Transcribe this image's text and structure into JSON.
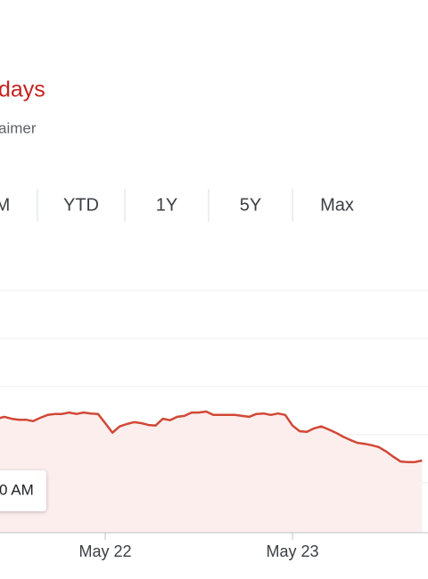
{
  "header": {
    "title": "days",
    "disclaimer": "aimer"
  },
  "tabs": [
    "M",
    "YTD",
    "1Y",
    "5Y",
    "Max"
  ],
  "tooltip": "0 AM",
  "chart_data": {
    "type": "line",
    "color": "#d14836",
    "fill": "#fdeeee",
    "grid": true,
    "ylim": [
      -1.04,
      4
    ],
    "grid_values": [
      0,
      1,
      2,
      3,
      4
    ],
    "categories": [
      null,
      null,
      null,
      null,
      null,
      null,
      null,
      null,
      null,
      null,
      null,
      null,
      null,
      null,
      null,
      "May 22",
      null,
      null,
      null,
      null,
      null,
      null,
      null,
      null,
      null,
      null,
      null,
      null,
      null,
      null,
      null,
      null,
      null,
      null,
      null,
      null,
      null,
      null,
      null,
      null,
      null,
      "May 23",
      null,
      null,
      null,
      null,
      null,
      null,
      null,
      null,
      null,
      null,
      null,
      null,
      null,
      null,
      null,
      null,
      null,
      null
    ],
    "values": [
      1.33,
      1.37,
      1.33,
      1.31,
      1.31,
      1.28,
      1.35,
      1.41,
      1.43,
      1.43,
      1.46,
      1.43,
      1.46,
      1.44,
      1.43,
      1.24,
      1.04,
      1.17,
      1.22,
      1.26,
      1.24,
      1.2,
      1.19,
      1.33,
      1.3,
      1.37,
      1.39,
      1.46,
      1.46,
      1.48,
      1.41,
      1.41,
      1.41,
      1.41,
      1.39,
      1.37,
      1.43,
      1.44,
      1.41,
      1.44,
      1.41,
      1.19,
      1.07,
      1.06,
      1.13,
      1.17,
      1.11,
      1.04,
      0.96,
      0.89,
      0.83,
      0.81,
      0.78,
      0.74,
      0.65,
      0.54,
      0.44,
      0.43,
      0.43,
      0.46
    ]
  }
}
